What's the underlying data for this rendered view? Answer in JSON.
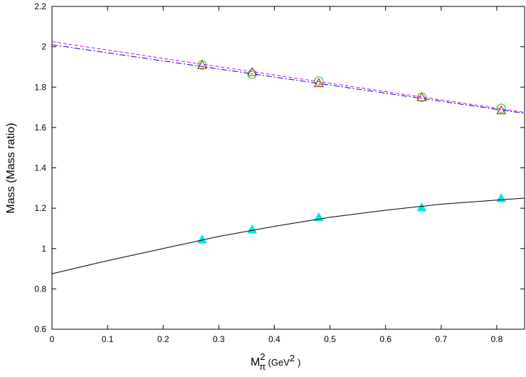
{
  "chart_data": {
    "type": "line",
    "y_label": "Mass (Mass ratio)",
    "x_label": {
      "base": "M",
      "sub": "π",
      "sup": "2",
      "unit": "(GeV",
      "unit_sup": "2",
      "close": ")"
    },
    "xlim": [
      0,
      0.85
    ],
    "ylim": [
      0.6,
      2.2
    ],
    "xticks": [
      0,
      0.1,
      0.2,
      0.3,
      0.4,
      0.5,
      0.6,
      0.7,
      0.8
    ],
    "yticks": [
      0.6,
      0.8,
      1,
      1.2,
      1.4,
      1.6,
      1.8,
      2,
      2.2
    ],
    "grid": false,
    "series": [
      {
        "color": "#00e5e5",
        "marker": "filled-triangle",
        "x": [
          0.27,
          0.36,
          0.48,
          0.665,
          0.808
        ],
        "values": [
          1.045,
          1.095,
          1.155,
          1.204,
          1.25
        ]
      },
      {
        "color": "#000000",
        "marker": "none",
        "dash": "none",
        "x": [
          0,
          0.1,
          0.2,
          0.3,
          0.4,
          0.5,
          0.6,
          0.7,
          0.8,
          0.85
        ],
        "values": [
          0.875,
          0.94,
          1.0,
          1.06,
          1.11,
          1.155,
          1.19,
          1.22,
          1.24,
          1.25
        ]
      },
      {
        "color": "#cc0000",
        "marker": "open-triangle",
        "x": [
          0.27,
          0.36,
          0.48,
          0.665,
          0.808
        ],
        "values": [
          1.91,
          1.875,
          1.82,
          1.75,
          1.685
        ]
      },
      {
        "color": "#00cc00",
        "marker": "circle",
        "x": [
          0.27,
          0.36,
          0.48,
          0.665,
          0.808
        ],
        "values": [
          1.91,
          1.865,
          1.83,
          1.75,
          1.695
        ]
      },
      {
        "color": "#0000cc",
        "marker": "none",
        "dash": "dash-dot",
        "x": [
          0,
          0.85
        ],
        "values": [
          2.01,
          1.67
        ]
      },
      {
        "color": "#e000e0",
        "marker": "none",
        "dash": "dash",
        "x": [
          0,
          0.85
        ],
        "values": [
          2.025,
          1.675
        ]
      }
    ]
  }
}
